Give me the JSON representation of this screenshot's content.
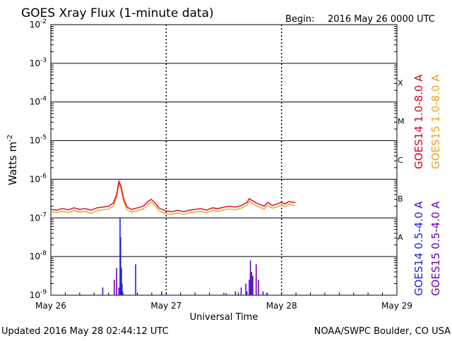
{
  "header": {
    "title": "GOES Xray Flux (1-minute data)",
    "begin_label": "Begin:",
    "begin_value": "2016 May 26 0000 UTC"
  },
  "footer": {
    "updated": "Updated 2016 May 28 02:44:12 UTC",
    "credit": "NOAA/SWPC Boulder, CO USA"
  },
  "chart_data": {
    "type": "line",
    "xlabel": "Universal Time",
    "ylabel_base": "Watts m",
    "ylabel_exp": "-2",
    "yscale": "log",
    "ylim": [
      1e-09,
      0.01
    ],
    "x_units": "day from 2016 May 26 0000 UTC",
    "xlim": [
      0,
      3
    ],
    "x_ticks": [
      {
        "value": 0,
        "label": "May 26"
      },
      {
        "value": 1,
        "label": "May 27"
      },
      {
        "value": 2,
        "label": "May 28"
      },
      {
        "value": 3,
        "label": "May 29"
      }
    ],
    "y_ticks": [
      {
        "exp": -9,
        "base": "10",
        "sup": "-9"
      },
      {
        "exp": -8,
        "base": "10",
        "sup": "-8"
      },
      {
        "exp": -7,
        "base": "10",
        "sup": "-7"
      },
      {
        "exp": -6,
        "base": "10",
        "sup": "-6"
      },
      {
        "exp": -5,
        "base": "10",
        "sup": "-5"
      },
      {
        "exp": -4,
        "base": "10",
        "sup": "-4"
      },
      {
        "exp": -3,
        "base": "10",
        "sup": "-3"
      },
      {
        "exp": -2,
        "base": "10",
        "sup": "-2"
      }
    ],
    "flare_classes": [
      {
        "label": "A",
        "exp": -7.5
      },
      {
        "label": "B",
        "exp": -6.5
      },
      {
        "label": "C",
        "exp": -5.5
      },
      {
        "label": "M",
        "exp": -4.5
      },
      {
        "label": "X",
        "exp": -3.5
      }
    ],
    "grid": "horizontal at each decade, dashed verticals at day boundaries",
    "series": [
      {
        "name": "GOES14 1.0-8.0 A",
        "color": "#e0001a",
        "values_exp": [
          [
            0.0,
            -6.78
          ],
          [
            0.05,
            -6.8
          ],
          [
            0.1,
            -6.76
          ],
          [
            0.15,
            -6.79
          ],
          [
            0.2,
            -6.74
          ],
          [
            0.25,
            -6.78
          ],
          [
            0.3,
            -6.76
          ],
          [
            0.35,
            -6.8
          ],
          [
            0.4,
            -6.74
          ],
          [
            0.45,
            -6.72
          ],
          [
            0.5,
            -6.7
          ],
          [
            0.54,
            -6.62
          ],
          [
            0.57,
            -6.4
          ],
          [
            0.59,
            -6.05
          ],
          [
            0.61,
            -6.2
          ],
          [
            0.63,
            -6.5
          ],
          [
            0.66,
            -6.72
          ],
          [
            0.7,
            -6.78
          ],
          [
            0.75,
            -6.74
          ],
          [
            0.8,
            -6.7
          ],
          [
            0.84,
            -6.58
          ],
          [
            0.87,
            -6.52
          ],
          [
            0.9,
            -6.6
          ],
          [
            0.94,
            -6.75
          ],
          [
            1.0,
            -6.82
          ],
          [
            1.05,
            -6.84
          ],
          [
            1.1,
            -6.8
          ],
          [
            1.15,
            -6.84
          ],
          [
            1.2,
            -6.8
          ],
          [
            1.25,
            -6.78
          ],
          [
            1.3,
            -6.76
          ],
          [
            1.35,
            -6.8
          ],
          [
            1.4,
            -6.74
          ],
          [
            1.45,
            -6.76
          ],
          [
            1.5,
            -6.72
          ],
          [
            1.55,
            -6.7
          ],
          [
            1.6,
            -6.72
          ],
          [
            1.65,
            -6.68
          ],
          [
            1.7,
            -6.6
          ],
          [
            1.72,
            -6.5
          ],
          [
            1.75,
            -6.56
          ],
          [
            1.8,
            -6.64
          ],
          [
            1.85,
            -6.7
          ],
          [
            1.88,
            -6.6
          ],
          [
            1.92,
            -6.68
          ],
          [
            1.96,
            -6.64
          ],
          [
            2.0,
            -6.6
          ],
          [
            2.03,
            -6.64
          ],
          [
            2.06,
            -6.58
          ],
          [
            2.1,
            -6.6
          ],
          [
            2.12,
            -6.6
          ]
        ]
      },
      {
        "name": "GOES15 1.0-8.0 A",
        "color": "#f0a020",
        "values_exp": [
          [
            0.0,
            -6.84
          ],
          [
            0.05,
            -6.86
          ],
          [
            0.1,
            -6.83
          ],
          [
            0.15,
            -6.86
          ],
          [
            0.2,
            -6.81
          ],
          [
            0.25,
            -6.85
          ],
          [
            0.3,
            -6.83
          ],
          [
            0.35,
            -6.88
          ],
          [
            0.4,
            -6.81
          ],
          [
            0.45,
            -6.79
          ],
          [
            0.5,
            -6.77
          ],
          [
            0.54,
            -6.69
          ],
          [
            0.57,
            -6.47
          ],
          [
            0.59,
            -6.12
          ],
          [
            0.61,
            -6.27
          ],
          [
            0.63,
            -6.57
          ],
          [
            0.66,
            -6.79
          ],
          [
            0.7,
            -6.85
          ],
          [
            0.75,
            -6.81
          ],
          [
            0.8,
            -6.77
          ],
          [
            0.84,
            -6.65
          ],
          [
            0.87,
            -6.59
          ],
          [
            0.9,
            -6.67
          ],
          [
            0.94,
            -6.82
          ],
          [
            1.0,
            -6.89
          ],
          [
            1.05,
            -6.91
          ],
          [
            1.1,
            -6.87
          ],
          [
            1.15,
            -6.91
          ],
          [
            1.2,
            -6.87
          ],
          [
            1.25,
            -6.85
          ],
          [
            1.3,
            -6.83
          ],
          [
            1.35,
            -6.87
          ],
          [
            1.4,
            -6.81
          ],
          [
            1.45,
            -6.83
          ],
          [
            1.5,
            -6.79
          ],
          [
            1.55,
            -6.77
          ],
          [
            1.6,
            -6.79
          ],
          [
            1.65,
            -6.75
          ],
          [
            1.7,
            -6.67
          ],
          [
            1.72,
            -6.57
          ],
          [
            1.75,
            -6.63
          ],
          [
            1.8,
            -6.71
          ],
          [
            1.85,
            -6.77
          ],
          [
            1.88,
            -6.67
          ],
          [
            1.92,
            -6.75
          ],
          [
            1.96,
            -6.71
          ],
          [
            2.0,
            -6.67
          ],
          [
            2.03,
            -6.71
          ],
          [
            2.06,
            -6.65
          ],
          [
            2.1,
            -6.67
          ],
          [
            2.12,
            -6.67
          ]
        ]
      },
      {
        "name": "GOES14 0.5-4.0 A",
        "color": "#2020e0",
        "spikes_exp": [
          [
            0.6,
            -7.0
          ],
          [
            0.605,
            -7.5
          ],
          [
            0.612,
            -8.3
          ],
          [
            0.617,
            -8.7
          ],
          [
            0.735,
            -8.2
          ],
          [
            0.62,
            -8.9
          ],
          [
            0.45,
            -8.8
          ],
          [
            1.7,
            -8.9
          ],
          [
            1.72,
            -8.6
          ],
          [
            1.74,
            -8.4
          ]
        ]
      },
      {
        "name": "GOES15 0.5-4.0 A",
        "color": "#6a00b8",
        "spikes_exp": [
          [
            0.55,
            -8.6
          ],
          [
            0.57,
            -8.3
          ],
          [
            0.59,
            -8.8
          ],
          [
            0.96,
            -8.9
          ],
          [
            1.0,
            -8.95
          ],
          [
            1.52,
            -8.95
          ],
          [
            1.6,
            -8.9
          ],
          [
            1.65,
            -8.8
          ],
          [
            1.69,
            -8.7
          ],
          [
            1.73,
            -8.1
          ],
          [
            1.75,
            -8.5
          ],
          [
            1.78,
            -8.2
          ],
          [
            1.8,
            -8.6
          ],
          [
            1.84,
            -8.9
          ],
          [
            1.87,
            -8.95
          ],
          [
            2.0,
            -8.95
          ]
        ]
      }
    ]
  }
}
